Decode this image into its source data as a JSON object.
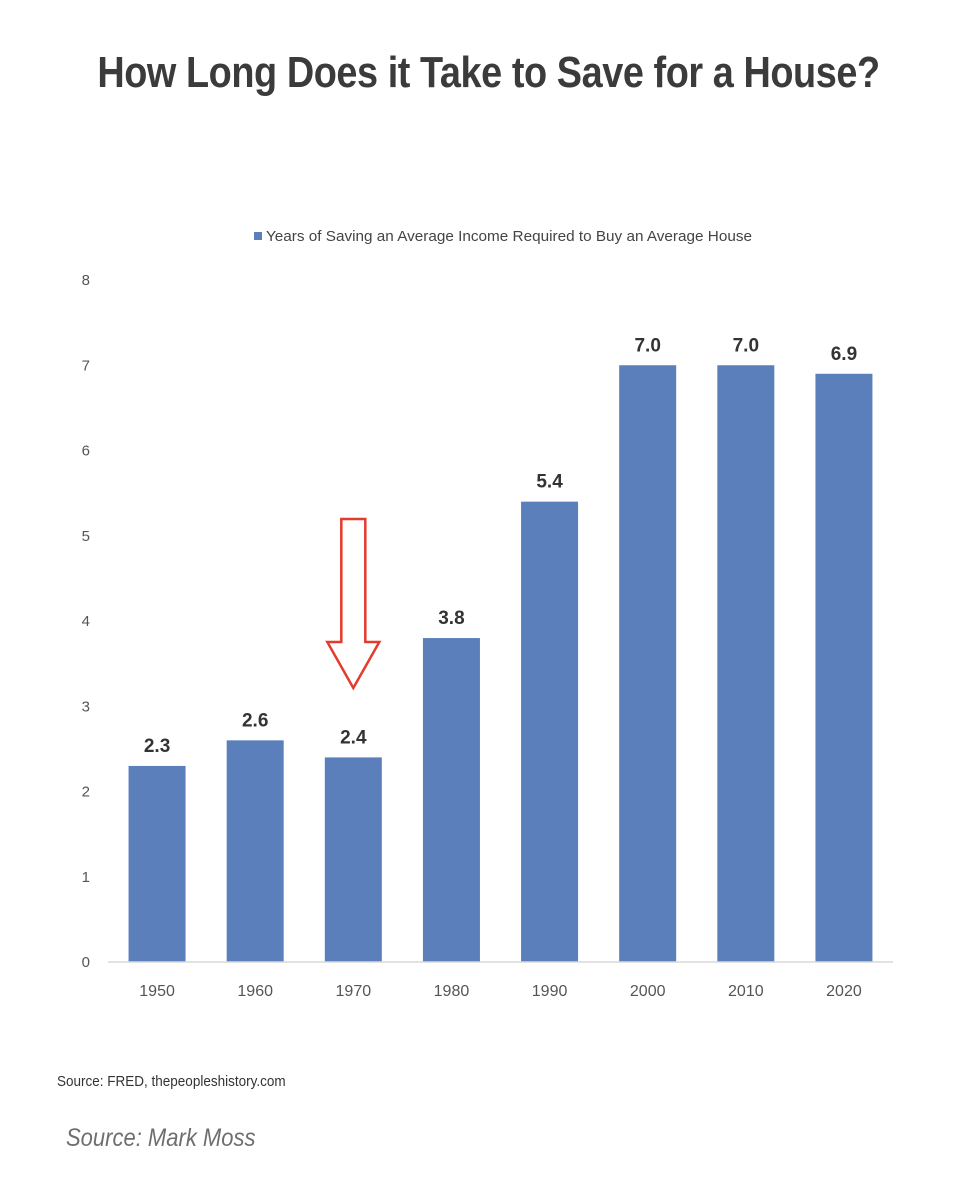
{
  "page": {
    "title": "How Long Does it Take to Save for a House?",
    "source_note": "Source: FRED, thepeopleshistory.com",
    "credit": "Source: Mark Moss"
  },
  "chart_data": {
    "type": "bar",
    "title": "How Long Does it Take to Save for a House?",
    "xlabel": "",
    "ylabel": "",
    "categories": [
      "1950",
      "1960",
      "1970",
      "1980",
      "1990",
      "2000",
      "2010",
      "2020"
    ],
    "series": [
      {
        "name": "Years of Saving an Average Income Required to Buy an Average House",
        "values": [
          2.3,
          2.6,
          2.4,
          3.8,
          5.4,
          7.0,
          7.0,
          6.9
        ],
        "labels": [
          "2.3",
          "2.6",
          "2.4",
          "3.8",
          "5.4",
          "7.0",
          "7.0",
          "6.9"
        ],
        "color": "#5b7fbb"
      }
    ],
    "ylim": [
      0,
      8
    ],
    "yticks": [
      "0",
      "1",
      "2",
      "3",
      "4",
      "5",
      "6",
      "7",
      "8"
    ],
    "grid": false,
    "legend": "top",
    "annotation": {
      "type": "down-arrow",
      "category": "1970",
      "color": "#e33b2e"
    }
  }
}
